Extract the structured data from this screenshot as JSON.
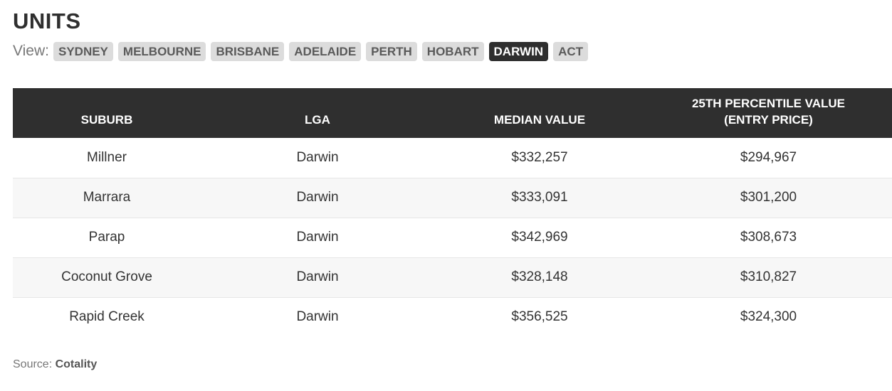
{
  "title": "UNITS",
  "view": {
    "label": "View:",
    "tabs": [
      {
        "label": "SYDNEY",
        "active": false
      },
      {
        "label": "MELBOURNE",
        "active": false
      },
      {
        "label": "BRISBANE",
        "active": false
      },
      {
        "label": "ADELAIDE",
        "active": false
      },
      {
        "label": "PERTH",
        "active": false
      },
      {
        "label": "HOBART",
        "active": false
      },
      {
        "label": "DARWIN",
        "active": true
      },
      {
        "label": "ACT",
        "active": false
      }
    ]
  },
  "table": {
    "headers": [
      "SUBURB",
      "LGA",
      "MEDIAN VALUE",
      "25TH PERCENTILE VALUE",
      "(ENTRY PRICE)"
    ],
    "rows": [
      [
        "Millner",
        "Darwin",
        "$332,257",
        "$294,967"
      ],
      [
        "Marrara",
        "Darwin",
        "$333,091",
        "$301,200"
      ],
      [
        "Parap",
        "Darwin",
        "$342,969",
        "$308,673"
      ],
      [
        "Coconut Grove",
        "Darwin",
        "$328,148",
        "$310,827"
      ],
      [
        "Rapid Creek",
        "Darwin",
        "$356,525",
        "$324,300"
      ]
    ]
  },
  "source": {
    "label": "Source:",
    "name": "Cotality"
  },
  "colors": {
    "header_bg": "#2f2f2f",
    "tab_bg": "#dcdcdc",
    "tab_active_bg": "#2f2f2f"
  }
}
